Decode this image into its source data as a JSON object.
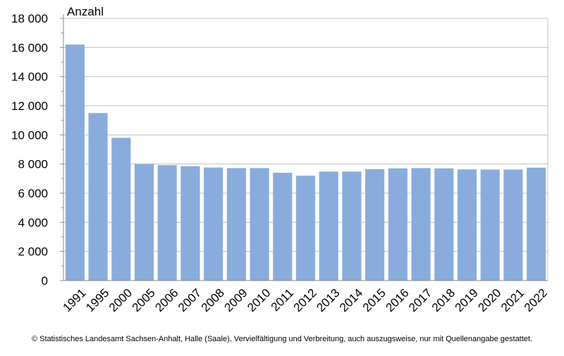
{
  "chart_data": {
    "type": "bar",
    "title": "",
    "xlabel": "",
    "ylabel": "Anzahl",
    "categories": [
      "1991",
      "1995",
      "2000",
      "2005",
      "2006",
      "2007",
      "2008",
      "2009",
      "2010",
      "2011",
      "2012",
      "2013",
      "2014",
      "2015",
      "2016",
      "2017",
      "2018",
      "2019",
      "2020",
      "2021",
      "2022"
    ],
    "values": [
      16200,
      11500,
      9800,
      8000,
      7920,
      7850,
      7760,
      7720,
      7720,
      7400,
      7200,
      7480,
      7480,
      7650,
      7700,
      7720,
      7700,
      7630,
      7620,
      7620,
      7750
    ],
    "ylim": [
      0,
      18000
    ],
    "yticks": [
      0,
      2000,
      4000,
      6000,
      8000,
      10000,
      12000,
      14000,
      16000,
      18000
    ],
    "ytick_labels": [
      "0",
      "2 000",
      "4 000",
      "6 000",
      "8 000",
      "10 000",
      "12 000",
      "14 000",
      "16 000",
      "18 000"
    ],
    "grid": true,
    "bar_color": "#8aacdc",
    "grid_color": "#c0c0c0"
  },
  "footer": "© Statistisches Landesamt Sachsen-Anhalt, Halle (Saale), Vervielfältigung und Verbreitung, auch auszugsweise, nur mit Quellenangabe gestattet."
}
